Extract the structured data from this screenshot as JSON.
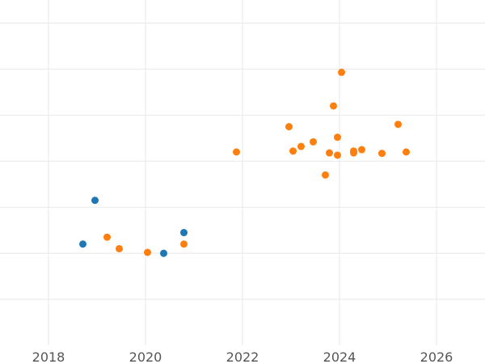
{
  "chart_data": {
    "type": "scatter",
    "title": "",
    "xlabel": "",
    "ylabel": "",
    "xlim": [
      2017,
      2027
    ],
    "ylim": [
      0,
      7.5
    ],
    "grid": true,
    "x_ticks": [
      2018,
      2020,
      2022,
      2024,
      2026
    ],
    "x_tick_labels": [
      "2018",
      "2020",
      "2022",
      "2024",
      "2026"
    ],
    "y_gridlines": [
      1,
      2,
      3,
      4,
      5,
      6,
      7
    ],
    "series": [
      {
        "color": "#1f77b4",
        "points": [
          {
            "x": "2018-09",
            "y": 2.2
          },
          {
            "x": "2018-12",
            "y": 3.15
          },
          {
            "x": "2020-05",
            "y": 2.0
          },
          {
            "x": "2020-10",
            "y": 2.45
          }
        ]
      },
      {
        "color": "#ff7f0e",
        "points": [
          {
            "x": "2019-03",
            "y": 2.35
          },
          {
            "x": "2019-06",
            "y": 2.1
          },
          {
            "x": "2020-01",
            "y": 2.02
          },
          {
            "x": "2020-10",
            "y": 2.2
          },
          {
            "x": "2021-11",
            "y": 4.2
          },
          {
            "x": "2022-12",
            "y": 4.75
          },
          {
            "x": "2023-01",
            "y": 4.22
          },
          {
            "x": "2023-03",
            "y": 4.32
          },
          {
            "x": "2023-06",
            "y": 4.42
          },
          {
            "x": "2023-09",
            "y": 3.7
          },
          {
            "x": "2023-10",
            "y": 4.18
          },
          {
            "x": "2023-11",
            "y": 5.2
          },
          {
            "x": "2023-12",
            "y": 4.52
          },
          {
            "x": "2023-12",
            "y": 4.13
          },
          {
            "x": "2024-01",
            "y": 5.93
          },
          {
            "x": "2024-04",
            "y": 4.22
          },
          {
            "x": "2024-04",
            "y": 4.18
          },
          {
            "x": "2024-06",
            "y": 4.25
          },
          {
            "x": "2024-11",
            "y": 4.17
          },
          {
            "x": "2025-03",
            "y": 4.8
          },
          {
            "x": "2025-05",
            "y": 4.2
          }
        ]
      }
    ]
  }
}
